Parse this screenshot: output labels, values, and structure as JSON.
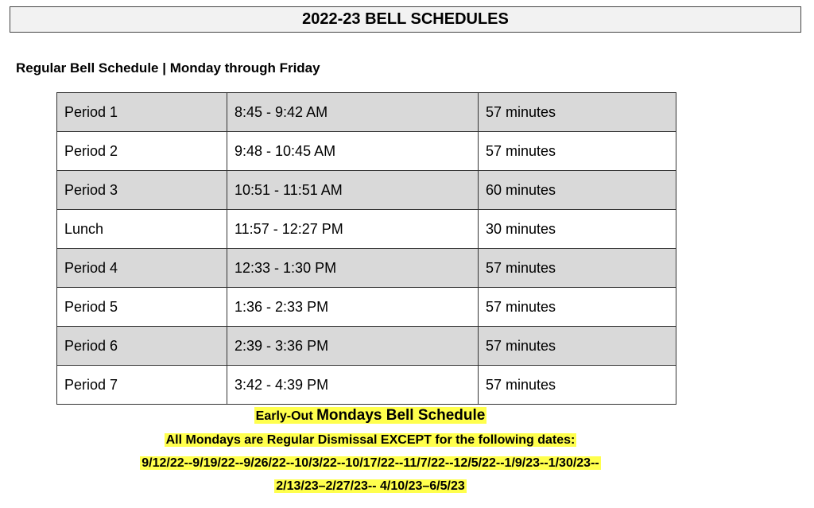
{
  "title": "2022-23 BELL SCHEDULES",
  "regular_heading": "Regular Bell Schedule | Monday through Friday",
  "schedule": [
    {
      "period": "Period 1",
      "time": "8:45 - 9:42 AM",
      "duration": "57 minutes"
    },
    {
      "period": "Period 2",
      "time": "9:48 - 10:45 AM",
      "duration": "57 minutes"
    },
    {
      "period": "Period 3",
      "time": "10:51 - 11:51 AM",
      "duration": "60 minutes"
    },
    {
      "period": "Lunch",
      "time": "11:57 - 12:27 PM",
      "duration": "30 minutes"
    },
    {
      "period": "Period 4",
      "time": "12:33 - 1:30 PM",
      "duration": "57 minutes"
    },
    {
      "period": "Period 5",
      "time": "1:36 - 2:33 PM",
      "duration": "57 minutes"
    },
    {
      "period": "Period 6",
      "time": "2:39 - 3:36 PM",
      "duration": "57 minutes"
    },
    {
      "period": "Period 7",
      "time": "3:42 - 4:39 PM",
      "duration": "57 minutes"
    }
  ],
  "early_out": {
    "heading_prefix": "Early-Out ",
    "heading_main": "Mondays Bell Schedule",
    "note": "All Mondays are Regular Dismissal EXCEPT for the following dates:",
    "dates_line1": "9/12/22--9/19/22--9/26/22--10/3/22--10/17/22--11/7/22--12/5/22--1/9/23--1/30/23--",
    "dates_line2": "2/13/23–2/27/23-- 4/10/23–6/5/23"
  },
  "colors": {
    "row_shade": "#d9d9d9",
    "highlight": "#ffff4d",
    "title_bg": "#f2f2f2"
  }
}
